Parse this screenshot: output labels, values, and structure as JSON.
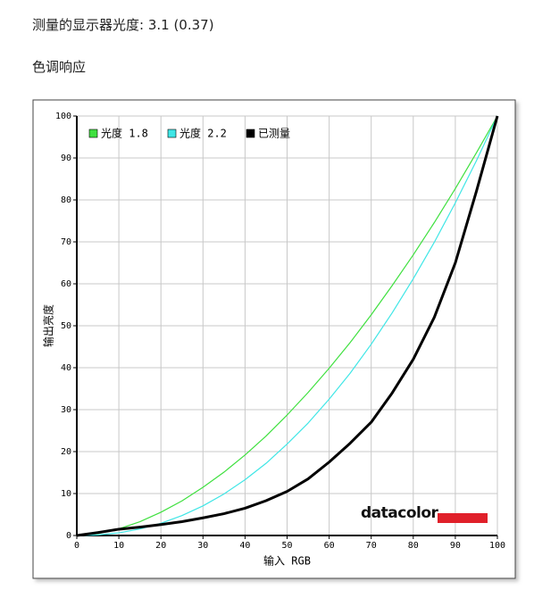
{
  "header": {
    "measured": "测量的显示器光度: 3.1 (0.37)",
    "section": "色调响应"
  },
  "chart_data": {
    "type": "line",
    "x_label": "输入 RGB",
    "y_label": "输出亮度",
    "logo": "datacolor",
    "x": [
      0,
      5,
      10,
      15,
      20,
      25,
      30,
      35,
      40,
      45,
      50,
      55,
      60,
      65,
      70,
      75,
      80,
      85,
      90,
      95,
      100
    ],
    "series": [
      {
        "name": "光度 1.8",
        "color": "#3fe03f",
        "values": [
          0,
          0.45,
          1.58,
          3.29,
          5.54,
          8.25,
          11.48,
          15.1,
          19.19,
          23.7,
          28.72,
          34.1,
          39.87,
          46.0,
          52.6,
          59.6,
          66.9,
          74.6,
          82.7,
          91.2,
          100
        ]
      },
      {
        "name": "光度 2.2",
        "color": "#3fe6e6",
        "values": [
          0,
          0.14,
          0.63,
          1.55,
          2.9,
          4.75,
          7.06,
          9.9,
          13.3,
          17.2,
          21.8,
          26.8,
          32.5,
          38.7,
          45.6,
          53.1,
          61.2,
          69.9,
          79.3,
          89.3,
          100
        ]
      },
      {
        "name": "已测量",
        "color": "#000000",
        "values": [
          0,
          0.7,
          1.5,
          2.0,
          2.6,
          3.3,
          4.2,
          5.2,
          6.5,
          8.3,
          10.5,
          13.5,
          17.5,
          22,
          27,
          34,
          42,
          52,
          65,
          82,
          100
        ]
      }
    ],
    "xlim": [
      0,
      100
    ],
    "ylim": [
      0,
      100
    ],
    "xticks": [
      0,
      10,
      20,
      30,
      40,
      50,
      60,
      70,
      80,
      90,
      100
    ],
    "yticks": [
      0,
      10,
      20,
      30,
      40,
      50,
      60,
      70,
      80,
      90,
      100
    ],
    "grid": true
  }
}
